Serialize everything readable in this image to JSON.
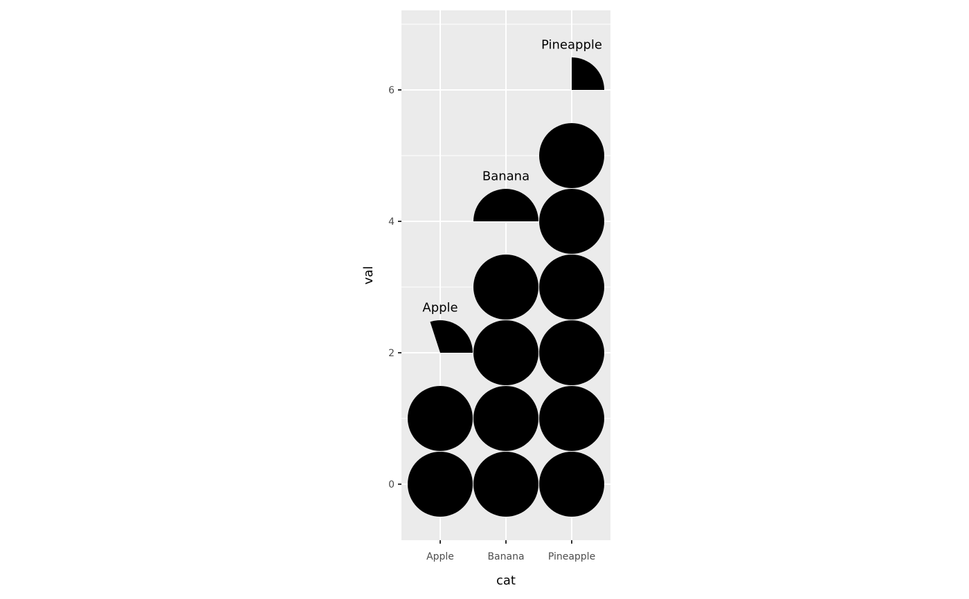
{
  "chart_data": {
    "type": "waffle-pie",
    "categories": [
      "Apple",
      "Banana",
      "Pineapple"
    ],
    "values": [
      2.3,
      4.5,
      6.25
    ],
    "labels": [
      "Apple",
      "Banana",
      "Pineapple"
    ],
    "xlabel": "cat",
    "ylabel": "val",
    "yticks": [
      0,
      2,
      4,
      6
    ],
    "ylim": [
      -0.85,
      7.2
    ],
    "grid": true,
    "colors": {
      "panel": "#ebebeb",
      "grid": "#ffffff",
      "mark": "#000000",
      "tick_text": "#4d4d4d",
      "axis_text": "#000000"
    }
  }
}
